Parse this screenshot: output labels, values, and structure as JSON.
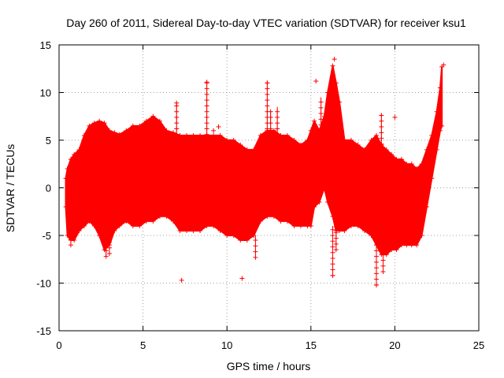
{
  "chart_data": {
    "type": "scatter",
    "title": "Day 260 of 2011, Sidereal Day-to-day VTEC variation (SDTVAR) for receiver ksu1",
    "xlabel": "GPS time / hours",
    "ylabel": "SDTVAR / TECUs",
    "xlim": [
      0,
      25
    ],
    "ylim": [
      -15,
      15
    ],
    "xticks": [
      0,
      5,
      10,
      15,
      20,
      25
    ],
    "yticks": [
      -15,
      -10,
      -5,
      0,
      5,
      10,
      15
    ],
    "grid": true,
    "marker": "+",
    "color": "#ff0000",
    "envelope": {
      "x": [
        0.4,
        0.5,
        0.7,
        0.9,
        1.2,
        1.5,
        1.8,
        2.1,
        2.4,
        2.7,
        3.0,
        3.3,
        3.6,
        4.0,
        4.4,
        4.8,
        5.2,
        5.6,
        6.0,
        6.4,
        6.8,
        7.2,
        7.6,
        8.0,
        8.4,
        8.8,
        9.2,
        9.6,
        10.0,
        10.4,
        10.8,
        11.2,
        11.6,
        12.0,
        12.4,
        12.8,
        13.2,
        13.6,
        14.0,
        14.4,
        14.8,
        15.0,
        15.2,
        15.5,
        15.8,
        16.0,
        16.3,
        16.5,
        16.7,
        17.0,
        17.4,
        17.8,
        18.2,
        18.6,
        18.9,
        19.2,
        19.5,
        19.8,
        20.1,
        20.4,
        20.7,
        21.0,
        21.3,
        21.6,
        21.9,
        22.2,
        22.5,
        22.7,
        22.8
      ],
      "upper": [
        1.0,
        2.0,
        3.0,
        3.5,
        4.0,
        5.5,
        6.5,
        6.8,
        7.0,
        6.8,
        6.0,
        5.8,
        5.6,
        6.0,
        6.5,
        6.5,
        7.0,
        7.5,
        7.0,
        6.0,
        5.8,
        5.5,
        5.5,
        5.5,
        5.5,
        5.5,
        5.5,
        5.5,
        5.0,
        5.0,
        4.5,
        4.0,
        4.0,
        5.5,
        6.0,
        6.0,
        5.5,
        5.5,
        5.0,
        4.5,
        5.0,
        6.0,
        7.0,
        6.0,
        7.5,
        10.0,
        12.8,
        11.0,
        9.0,
        5.0,
        5.0,
        4.5,
        4.0,
        5.0,
        5.5,
        4.5,
        4.0,
        3.5,
        3.0,
        3.0,
        2.5,
        2.5,
        2.0,
        2.5,
        4.0,
        5.5,
        8.0,
        10.5,
        12.7
      ],
      "lower": [
        -2.0,
        -5.0,
        -5.5,
        -5.5,
        -4.5,
        -4.0,
        -3.5,
        -4.0,
        -5.0,
        -6.5,
        -6.0,
        -4.5,
        -4.0,
        -3.5,
        -4.0,
        -4.0,
        -3.5,
        -3.5,
        -3.0,
        -3.0,
        -3.5,
        -4.5,
        -4.5,
        -4.5,
        -4.5,
        -4.0,
        -4.0,
        -4.5,
        -5.0,
        -5.0,
        -5.5,
        -5.5,
        -5.0,
        -3.5,
        -3.0,
        -3.0,
        -3.5,
        -3.5,
        -4.0,
        -4.0,
        -4.0,
        -4.0,
        -2.0,
        -1.5,
        0.0,
        -1.5,
        -3.0,
        -4.5,
        -4.5,
        -4.5,
        -4.0,
        -4.0,
        -4.5,
        -5.0,
        -6.0,
        -7.0,
        -7.0,
        -6.5,
        -6.5,
        -6.0,
        -6.0,
        -6.0,
        -6.0,
        -5.0,
        -2.0,
        1.0,
        4.0,
        6.0,
        6.5
      ]
    },
    "outliers": [
      {
        "x": 7.3,
        "y": -9.7
      },
      {
        "x": 10.9,
        "y": -9.5
      },
      {
        "x": 8.8,
        "y": 11.1
      },
      {
        "x": 7.0,
        "y": 8.9
      },
      {
        "x": 9.2,
        "y": 6.0
      },
      {
        "x": 9.5,
        "y": 6.4
      },
      {
        "x": 9.3,
        "y": 5.1
      },
      {
        "x": 12.4,
        "y": 11.0
      },
      {
        "x": 15.3,
        "y": 11.2
      },
      {
        "x": 18.9,
        "y": -10.2
      },
      {
        "x": 20.0,
        "y": 7.4
      },
      {
        "x": 16.3,
        "y": -9.2
      },
      {
        "x": 16.4,
        "y": 13.5
      },
      {
        "x": 22.9,
        "y": 12.9
      }
    ],
    "spikes": [
      {
        "x": 2.8,
        "y1": -7.2,
        "y2": -5.0
      },
      {
        "x": 3.0,
        "y1": -6.9,
        "y2": -4.5
      },
      {
        "x": 0.7,
        "y1": -6.0,
        "y2": -4.0
      },
      {
        "x": 8.8,
        "y1": 5.0,
        "y2": 11.1
      },
      {
        "x": 7.0,
        "y1": 5.0,
        "y2": 8.9
      },
      {
        "x": 11.7,
        "y1": -7.3,
        "y2": -5.0
      },
      {
        "x": 12.4,
        "y1": 5.0,
        "y2": 11.0
      },
      {
        "x": 12.6,
        "y1": 5.0,
        "y2": 8.0
      },
      {
        "x": 15.6,
        "y1": 6.0,
        "y2": 9.5
      },
      {
        "x": 16.3,
        "y1": -9.2,
        "y2": -4.0
      },
      {
        "x": 16.5,
        "y1": -6.5,
        "y2": -4.0
      },
      {
        "x": 18.9,
        "y1": -10.2,
        "y2": -6.0
      },
      {
        "x": 19.3,
        "y1": -8.8,
        "y2": -6.0
      },
      {
        "x": 19.2,
        "y1": 4.0,
        "y2": 7.8
      },
      {
        "x": 13.0,
        "y1": 5.0,
        "y2": 8.5
      }
    ]
  }
}
